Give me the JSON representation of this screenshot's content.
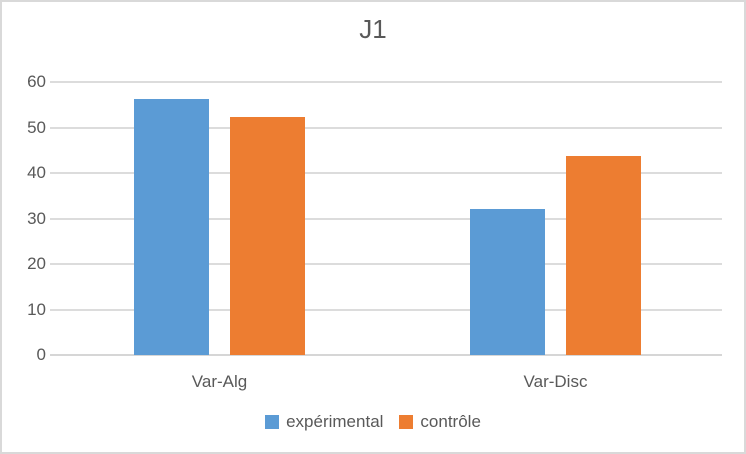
{
  "chart_data": {
    "type": "bar",
    "title": "J1",
    "categories": [
      "Var-Alg",
      "Var-Disc"
    ],
    "series": [
      {
        "name": "expérimental",
        "color": "#5B9BD5",
        "values": [
          56.3,
          32.0
        ]
      },
      {
        "name": "contrôle",
        "color": "#ED7D31",
        "values": [
          52.4,
          43.7
        ]
      }
    ],
    "xlabel": "",
    "ylabel": "",
    "ylim": [
      0,
      60
    ],
    "yticks": [
      0,
      10,
      20,
      30,
      40,
      50,
      60
    ],
    "grid": "horizontal",
    "legend_position": "bottom",
    "colors": {
      "text": "#595959",
      "gridline": "#DCDCDC",
      "frame_border": "#D9D9D9",
      "background": "#FFFFFF"
    }
  }
}
